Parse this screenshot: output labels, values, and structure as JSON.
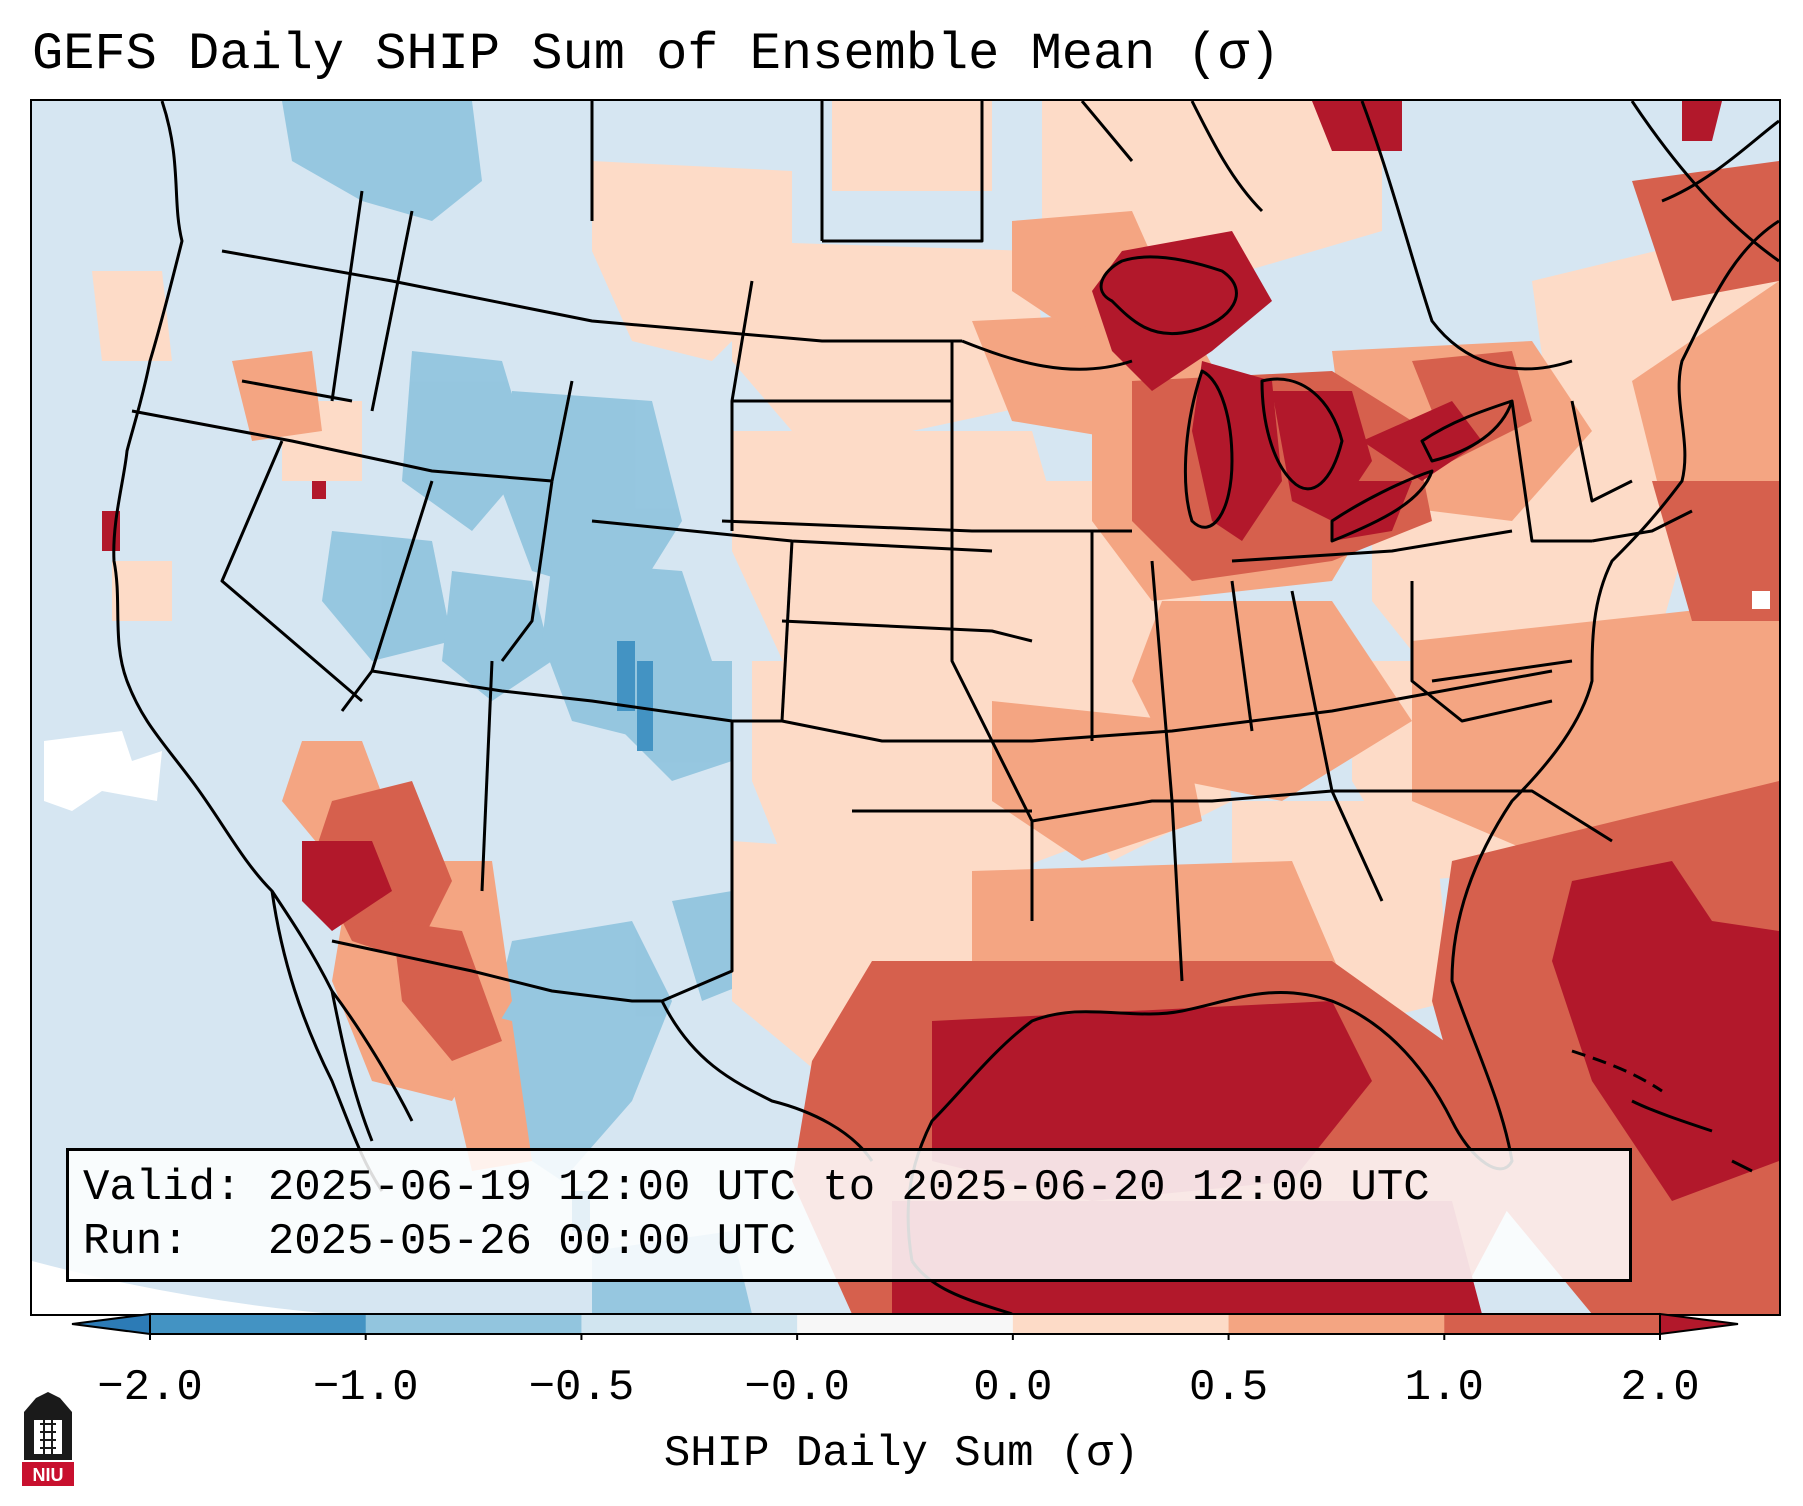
{
  "title": "GEFS Daily SHIP Sum of Ensemble Mean (σ)",
  "info": {
    "valid_label": "Valid:",
    "valid_value": "2025-06-19 12:00 UTC to 2025-06-20 12:00 UTC",
    "run_label": "Run:",
    "run_value": "2025-05-26 00:00 UTC"
  },
  "colorbar": {
    "label": "SHIP Daily Sum (σ)",
    "ticks": [
      "−2.0",
      "−1.0",
      "−0.5",
      "−0.0",
      "0.0",
      "0.5",
      "1.0",
      "2.0"
    ],
    "colors": {
      "under": "#2c7bb6",
      "bins": [
        "#4393c3",
        "#92c5de",
        "#d1e5f0",
        "#f7f7f7",
        "#fddbc7",
        "#f4a582",
        "#d6604d"
      ],
      "over": "#b2182b"
    }
  },
  "map": {
    "ocean_color": "#d6e6f2",
    "state_line_color": "#000000"
  },
  "logo": {
    "text": "NIU",
    "color": "#c8102e"
  }
}
